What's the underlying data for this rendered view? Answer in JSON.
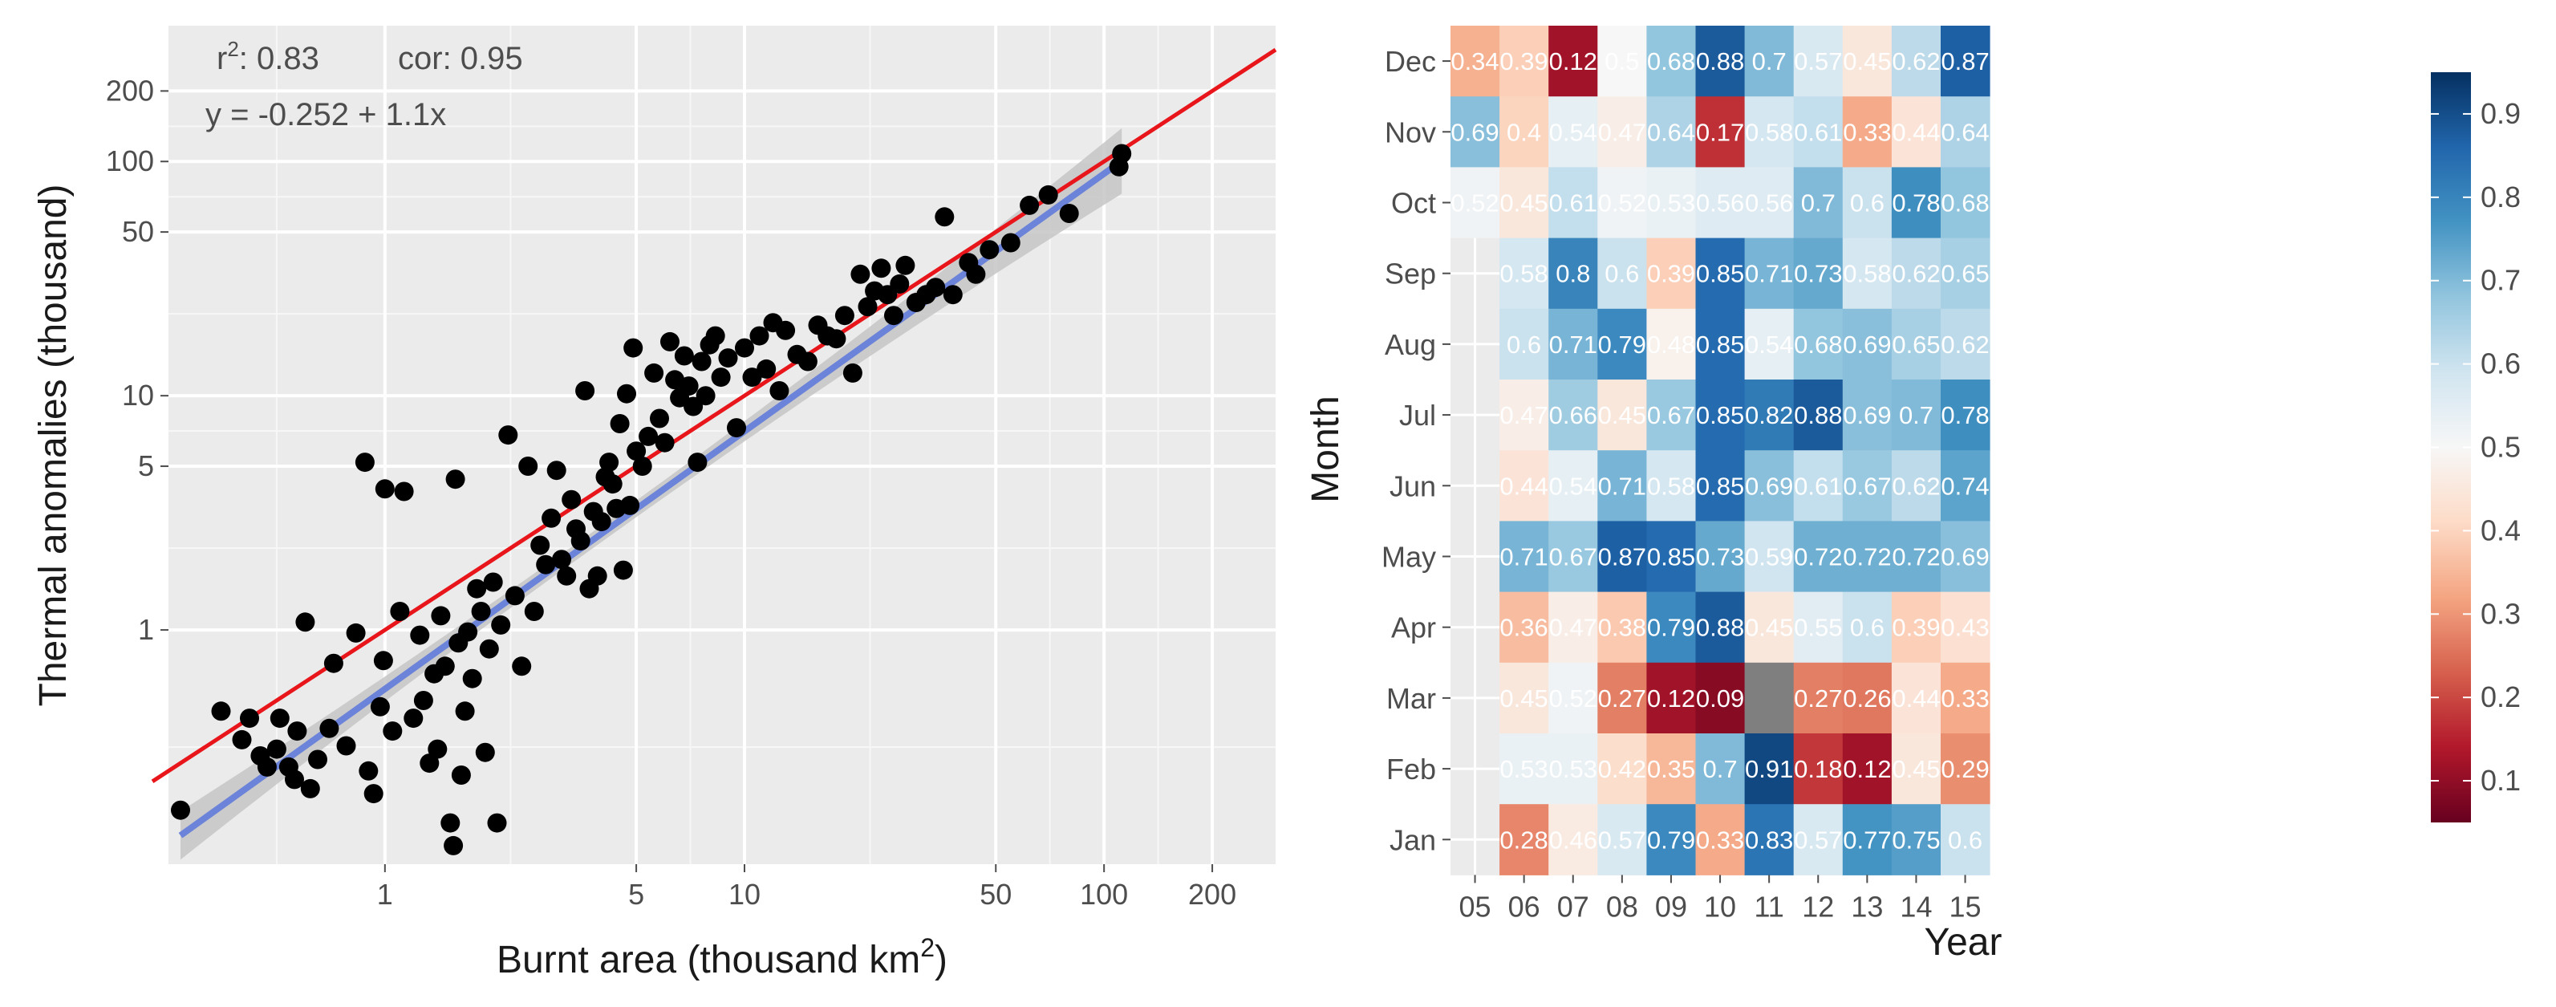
{
  "chart_data": [
    {
      "type": "scatter",
      "scale": "log-log",
      "xlabel": "Burnt area (thousand km²)",
      "ylabel": "Thermal anomalies (thousand)",
      "x_ticks": [
        1,
        5,
        10,
        50,
        100,
        200
      ],
      "y_ticks": [
        1,
        5,
        10,
        50,
        100,
        200
      ],
      "xlim": [
        0.25,
        300
      ],
      "ylim": [
        0.1,
        380
      ],
      "grid": true,
      "annotations": {
        "r2_label": "r",
        "r2_sup": "2",
        "r2_value": ": 0.83",
        "cor": "cor: 0.95",
        "equation": "y = -0.252 + 1.1x"
      },
      "fit_line": {
        "intercept": -0.252,
        "slope": 1.1,
        "color": "#6b83d8",
        "band_color": "#c6c6c6"
      },
      "identity_line": {
        "color": "#e8161b"
      },
      "points": [
        [
          0.27,
          0.17
        ],
        [
          0.35,
          0.45
        ],
        [
          0.4,
          0.34
        ],
        [
          0.42,
          0.42
        ],
        [
          0.45,
          0.29
        ],
        [
          0.47,
          0.26
        ],
        [
          0.5,
          0.31
        ],
        [
          0.51,
          0.42
        ],
        [
          0.54,
          0.26
        ],
        [
          0.56,
          0.23
        ],
        [
          0.57,
          0.37
        ],
        [
          0.6,
          1.08
        ],
        [
          0.62,
          0.21
        ],
        [
          0.65,
          0.28
        ],
        [
          0.7,
          0.38
        ],
        [
          0.72,
          0.72
        ],
        [
          0.78,
          0.32
        ],
        [
          0.83,
          0.97
        ],
        [
          0.88,
          5.2
        ],
        [
          0.9,
          0.25
        ],
        [
          0.93,
          0.2
        ],
        [
          0.97,
          0.47
        ],
        [
          0.99,
          0.74
        ],
        [
          1.0,
          4.0
        ],
        [
          1.05,
          0.37
        ],
        [
          1.1,
          1.2
        ],
        [
          1.13,
          3.9
        ],
        [
          1.2,
          0.42
        ],
        [
          1.25,
          0.95
        ],
        [
          1.28,
          0.5
        ],
        [
          1.33,
          0.27
        ],
        [
          1.37,
          0.65
        ],
        [
          1.4,
          0.31
        ],
        [
          1.43,
          1.15
        ],
        [
          1.47,
          0.7
        ],
        [
          1.52,
          0.15
        ],
        [
          1.55,
          0.12
        ],
        [
          1.57,
          4.4
        ],
        [
          1.6,
          0.88
        ],
        [
          1.63,
          0.24
        ],
        [
          1.67,
          0.45
        ],
        [
          1.7,
          0.98
        ],
        [
          1.75,
          0.62
        ],
        [
          1.8,
          1.5
        ],
        [
          1.85,
          1.2
        ],
        [
          1.9,
          0.3
        ],
        [
          1.95,
          0.83
        ],
        [
          2.0,
          1.6
        ],
        [
          2.05,
          0.15
        ],
        [
          2.1,
          1.05
        ],
        [
          2.2,
          6.8
        ],
        [
          2.3,
          1.4
        ],
        [
          2.4,
          0.7
        ],
        [
          2.5,
          5.0
        ],
        [
          2.6,
          1.2
        ],
        [
          2.7,
          2.3
        ],
        [
          2.8,
          1.9
        ],
        [
          2.9,
          3.0
        ],
        [
          3.0,
          4.8
        ],
        [
          3.1,
          2.0
        ],
        [
          3.2,
          1.7
        ],
        [
          3.3,
          3.6
        ],
        [
          3.4,
          2.7
        ],
        [
          3.5,
          2.4
        ],
        [
          3.6,
          10.5
        ],
        [
          3.7,
          1.5
        ],
        [
          3.8,
          3.2
        ],
        [
          3.9,
          1.7
        ],
        [
          4.0,
          2.9
        ],
        [
          4.1,
          4.5
        ],
        [
          4.2,
          5.2
        ],
        [
          4.3,
          4.2
        ],
        [
          4.4,
          3.3
        ],
        [
          4.5,
          7.6
        ],
        [
          4.6,
          1.8
        ],
        [
          4.7,
          10.2
        ],
        [
          4.8,
          3.4
        ],
        [
          4.9,
          16.0
        ],
        [
          5.0,
          5.8
        ],
        [
          5.2,
          5.0
        ],
        [
          5.4,
          6.7
        ],
        [
          5.6,
          12.5
        ],
        [
          5.8,
          8.0
        ],
        [
          6.0,
          6.3
        ],
        [
          6.2,
          17.0
        ],
        [
          6.4,
          11.7
        ],
        [
          6.6,
          9.8
        ],
        [
          6.8,
          14.8
        ],
        [
          7.0,
          11.0
        ],
        [
          7.2,
          9.0
        ],
        [
          7.4,
          5.2
        ],
        [
          7.6,
          14.0
        ],
        [
          7.8,
          10.0
        ],
        [
          8.0,
          16.5
        ],
        [
          8.3,
          18.0
        ],
        [
          8.6,
          12.0
        ],
        [
          9.0,
          14.5
        ],
        [
          9.5,
          7.3
        ],
        [
          10.0,
          16.0
        ],
        [
          10.5,
          12.0
        ],
        [
          11.0,
          18.0
        ],
        [
          11.5,
          13.0
        ],
        [
          12.0,
          20.5
        ],
        [
          12.5,
          10.5
        ],
        [
          13.0,
          19.0
        ],
        [
          14.0,
          15.0
        ],
        [
          15.0,
          14.0
        ],
        [
          16.0,
          20.0
        ],
        [
          17.0,
          18.0
        ],
        [
          18.0,
          17.5
        ],
        [
          19.0,
          22.0
        ],
        [
          20.0,
          12.5
        ],
        [
          21.0,
          33.0
        ],
        [
          22.0,
          24.0
        ],
        [
          23.0,
          28.0
        ],
        [
          24.0,
          35.0
        ],
        [
          25.0,
          27.0
        ],
        [
          26.0,
          22.0
        ],
        [
          27.0,
          30.0
        ],
        [
          28.0,
          36.0
        ],
        [
          30.0,
          25.0
        ],
        [
          32.0,
          27.0
        ],
        [
          34.0,
          29.0
        ],
        [
          36.0,
          58.0
        ],
        [
          38.0,
          27.0
        ],
        [
          42.0,
          37.0
        ],
        [
          44.0,
          33.0
        ],
        [
          48.0,
          42.0
        ],
        [
          55.0,
          45.0
        ],
        [
          62.0,
          65.0
        ],
        [
          70.0,
          72.0
        ],
        [
          80.0,
          60.0
        ],
        [
          110.0,
          95.0
        ],
        [
          112.0,
          108.0
        ]
      ]
    },
    {
      "type": "heatmap",
      "xlabel": "Year",
      "ylabel": "Month",
      "x_categories": [
        "05",
        "06",
        "07",
        "08",
        "09",
        "10",
        "11",
        "12",
        "13",
        "14",
        "15"
      ],
      "y_categories": [
        "Dec",
        "Nov",
        "Oct",
        "Sep",
        "Aug",
        "Jul",
        "Jun",
        "May",
        "Apr",
        "Mar",
        "Feb",
        "Jan"
      ],
      "values": [
        [
          "0.34",
          "0.39",
          "0.12",
          "0.5",
          "0.68",
          "0.88",
          "0.7",
          "0.57",
          "0.45",
          "0.62",
          "0.87"
        ],
        [
          "0.69",
          "0.4",
          "0.54",
          "0.47",
          "0.64",
          "0.17",
          "0.58",
          "0.61",
          "0.33",
          "0.44",
          "0.64"
        ],
        [
          "0.52",
          "0.45",
          "0.61",
          "0.52",
          "0.53",
          "0.56",
          "0.56",
          "0.7",
          "0.6",
          "0.78",
          "0.68"
        ],
        [
          null,
          "0.58",
          "0.8",
          "0.6",
          "0.39",
          "0.85",
          "0.71",
          "0.73",
          "0.58",
          "0.62",
          "0.65"
        ],
        [
          null,
          "0.6",
          "0.71",
          "0.79",
          "0.48",
          "0.85",
          "0.54",
          "0.68",
          "0.69",
          "0.65",
          "0.62"
        ],
        [
          null,
          "0.47",
          "0.66",
          "0.45",
          "0.67",
          "0.85",
          "0.82",
          "0.88",
          "0.69",
          "0.7",
          "0.78"
        ],
        [
          null,
          "0.44",
          "0.54",
          "0.71",
          "0.58",
          "0.85",
          "0.69",
          "0.61",
          "0.67",
          "0.62",
          "0.74"
        ],
        [
          null,
          "0.71",
          "0.67",
          "0.87",
          "0.85",
          "0.73",
          "0.59",
          "0.72",
          "0.72",
          "0.72",
          "0.69"
        ],
        [
          null,
          "0.36",
          "0.47",
          "0.38",
          "0.79",
          "0.88",
          "0.45",
          "0.55",
          "0.6",
          "0.39",
          "0.43"
        ],
        [
          null,
          "0.45",
          "0.52",
          "0.27",
          "0.12",
          "0.09",
          "NA",
          "0.27",
          "0.26",
          "0.44",
          "0.33"
        ],
        [
          null,
          "0.53",
          "0.53",
          "0.42",
          "0.35",
          "0.7",
          "0.91",
          "0.18",
          "0.12",
          "0.45",
          "0.29"
        ],
        [
          null,
          "0.28",
          "0.46",
          "0.57",
          "0.79",
          "0.33",
          "0.83",
          "0.57",
          "0.77",
          "0.75",
          "0.6"
        ]
      ],
      "na_color": "#7f7f7f",
      "colorbar": {
        "range": [
          0.05,
          0.95
        ],
        "ticks": [
          "0.1",
          "0.2",
          "0.3",
          "0.4",
          "0.5",
          "0.6",
          "0.7",
          "0.8",
          "0.9"
        ],
        "colors": [
          "#67001f",
          "#b2182b",
          "#d6604d",
          "#f4a582",
          "#fddbc7",
          "#f7f7f7",
          "#d1e5f0",
          "#92c5de",
          "#4393c3",
          "#2166ac",
          "#053061"
        ]
      }
    }
  ]
}
